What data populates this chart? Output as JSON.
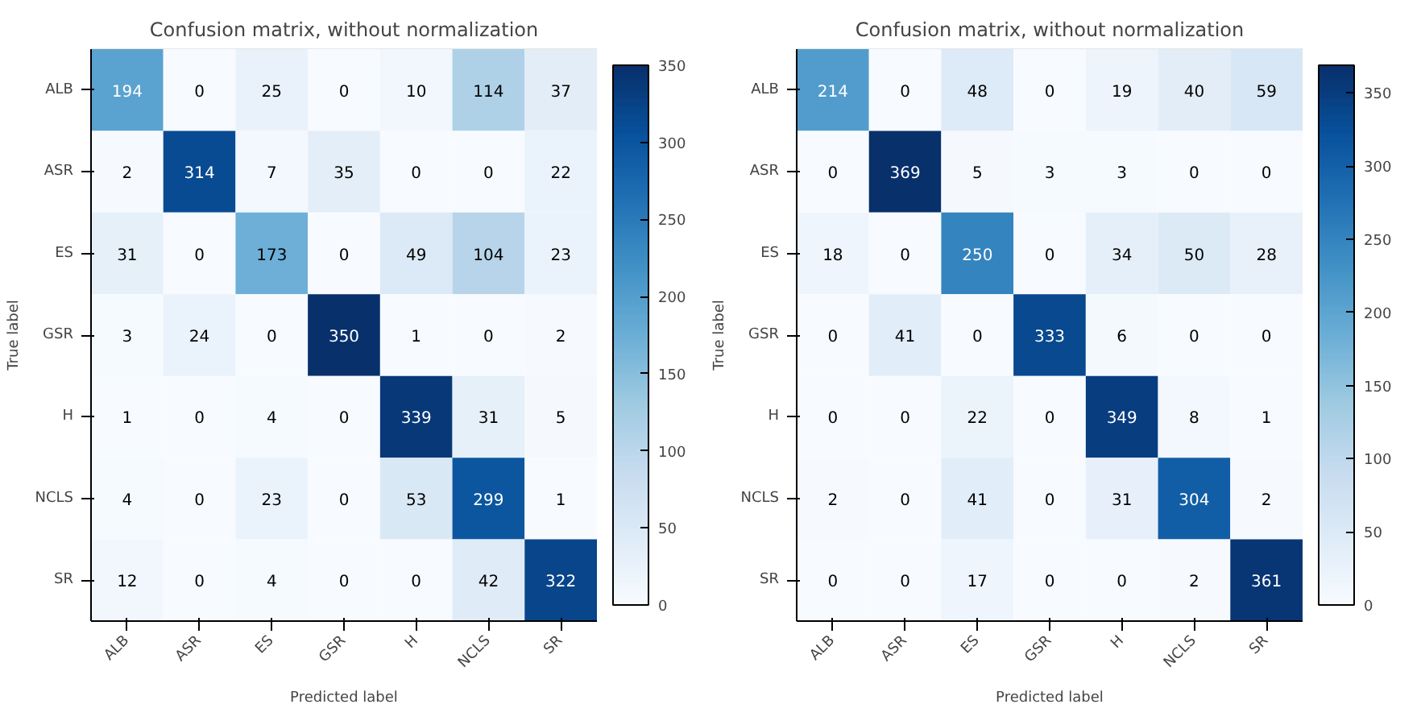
{
  "chart_data": [
    {
      "type": "heatmap",
      "title": "Confusion matrix, without normalization",
      "xlabel": "Predicted label",
      "ylabel": "True label",
      "categories": [
        "ALB",
        "ASR",
        "ES",
        "GSR",
        "H",
        "NCLS",
        "SR"
      ],
      "y_categories": [
        "ALB",
        "ASR",
        "ES",
        "GSR",
        "H",
        "NCLS",
        "SR"
      ],
      "cells": [
        [
          194,
          0,
          25,
          0,
          10,
          114,
          37
        ],
        [
          2,
          314,
          7,
          35,
          0,
          0,
          22
        ],
        [
          31,
          0,
          173,
          0,
          49,
          104,
          23
        ],
        [
          3,
          24,
          0,
          350,
          1,
          0,
          2
        ],
        [
          1,
          0,
          4,
          0,
          339,
          31,
          5
        ],
        [
          4,
          0,
          23,
          0,
          53,
          299,
          1
        ],
        [
          12,
          0,
          4,
          0,
          0,
          42,
          322
        ]
      ],
      "clim": [
        0,
        350
      ],
      "cticks": [
        0,
        50,
        100,
        150,
        200,
        250,
        300,
        350
      ],
      "data_labels": true,
      "grid": false
    },
    {
      "type": "heatmap",
      "title": "Confusion matrix, without normalization",
      "xlabel": "Predicted label",
      "ylabel": "True label",
      "categories": [
        "ALB",
        "ASR",
        "ES",
        "GSR",
        "H",
        "NCLS",
        "SR"
      ],
      "y_categories": [
        "ALB",
        "ASR",
        "ES",
        "GSR",
        "H",
        "NCLS",
        "SR"
      ],
      "cells": [
        [
          214,
          0,
          48,
          0,
          19,
          40,
          59
        ],
        [
          0,
          369,
          5,
          3,
          3,
          0,
          0
        ],
        [
          18,
          0,
          250,
          0,
          34,
          50,
          28
        ],
        [
          0,
          41,
          0,
          333,
          6,
          0,
          0
        ],
        [
          0,
          0,
          22,
          0,
          349,
          8,
          1
        ],
        [
          2,
          0,
          41,
          0,
          31,
          304,
          2
        ],
        [
          0,
          0,
          17,
          0,
          0,
          2,
          361
        ]
      ],
      "clim": [
        0,
        369
      ],
      "cticks": [
        0,
        50,
        100,
        150,
        200,
        250,
        300,
        350
      ],
      "data_labels": true,
      "grid": false
    }
  ]
}
